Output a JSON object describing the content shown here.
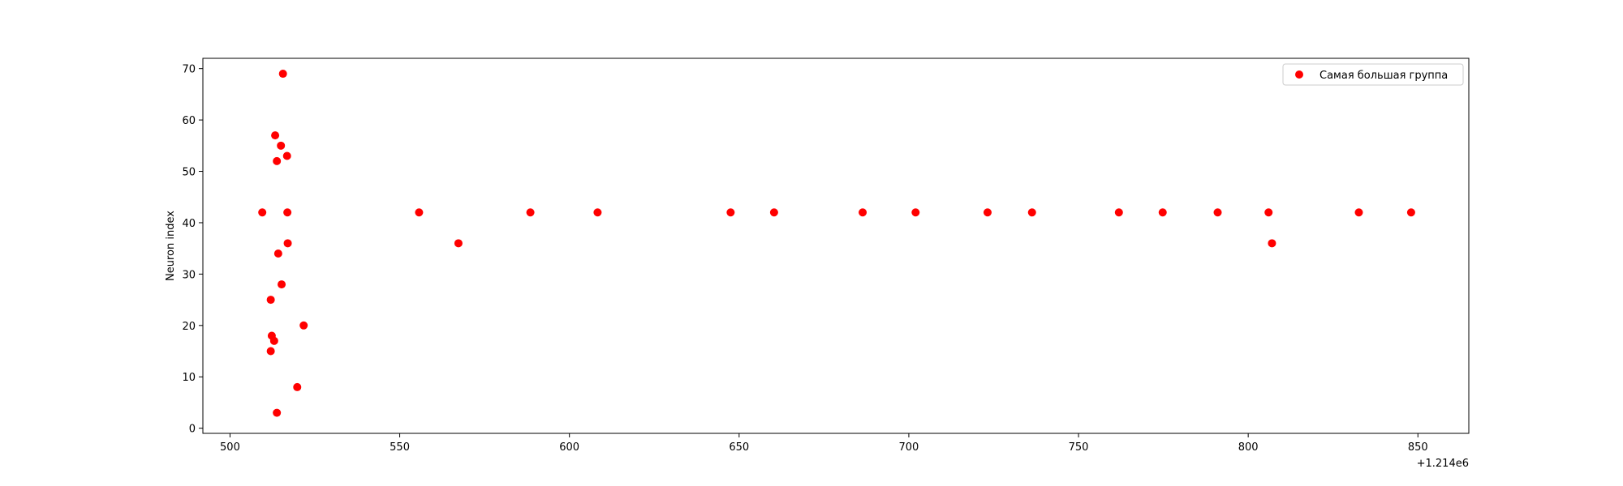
{
  "chart_data": {
    "type": "scatter",
    "title": "",
    "xlabel": "",
    "ylabel": "Neuron index",
    "x_offset_label": "+1.214e6",
    "xlim": [
      492,
      865
    ],
    "ylim": [
      -1,
      72
    ],
    "x_ticks": [
      500,
      550,
      600,
      650,
      700,
      750,
      800,
      850
    ],
    "y_ticks": [
      0,
      10,
      20,
      30,
      40,
      50,
      60,
      70
    ],
    "grid": false,
    "legend_position": "top-right",
    "color": "#ff0000",
    "series": [
      {
        "name": "Самая большая группа",
        "color": "#ff0000",
        "points": [
          {
            "x": 509.5,
            "y": 42
          },
          {
            "x": 512.0,
            "y": 25
          },
          {
            "x": 512.0,
            "y": 15
          },
          {
            "x": 512.3,
            "y": 18
          },
          {
            "x": 513.0,
            "y": 17
          },
          {
            "x": 513.3,
            "y": 57
          },
          {
            "x": 513.8,
            "y": 3
          },
          {
            "x": 513.8,
            "y": 52
          },
          {
            "x": 514.2,
            "y": 34
          },
          {
            "x": 515.0,
            "y": 55
          },
          {
            "x": 515.2,
            "y": 28
          },
          {
            "x": 515.6,
            "y": 69
          },
          {
            "x": 516.8,
            "y": 53
          },
          {
            "x": 516.9,
            "y": 42
          },
          {
            "x": 517.0,
            "y": 36
          },
          {
            "x": 519.8,
            "y": 8
          },
          {
            "x": 521.7,
            "y": 20
          },
          {
            "x": 555.7,
            "y": 42
          },
          {
            "x": 567.3,
            "y": 36
          },
          {
            "x": 588.5,
            "y": 42
          },
          {
            "x": 608.3,
            "y": 42
          },
          {
            "x": 647.5,
            "y": 42
          },
          {
            "x": 660.3,
            "y": 42
          },
          {
            "x": 686.4,
            "y": 42
          },
          {
            "x": 702.0,
            "y": 42
          },
          {
            "x": 723.2,
            "y": 42
          },
          {
            "x": 736.3,
            "y": 42
          },
          {
            "x": 761.9,
            "y": 42
          },
          {
            "x": 774.8,
            "y": 42
          },
          {
            "x": 791.0,
            "y": 42
          },
          {
            "x": 806.0,
            "y": 42
          },
          {
            "x": 807.0,
            "y": 36
          },
          {
            "x": 832.6,
            "y": 42
          },
          {
            "x": 848.0,
            "y": 42
          }
        ]
      }
    ]
  }
}
